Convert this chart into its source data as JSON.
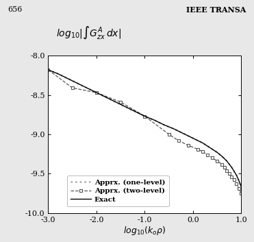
{
  "title": "$log_{10}|\\int G^A_{zx}\\, dx|$",
  "xlabel": "$log_{10}(k_o\\rho)$",
  "xlim": [
    -3.0,
    1.0
  ],
  "ylim": [
    -10.0,
    -8.0
  ],
  "xticks": [
    -3.0,
    -2.0,
    -1.0,
    0.0,
    1.0
  ],
  "yticks": [
    -10.0,
    -9.5,
    -9.0,
    -8.5,
    -8.0
  ],
  "xtick_labels": [
    "-3.0",
    "-2.0",
    "-1.0",
    "0.0",
    "1.0"
  ],
  "ytick_labels": [
    "-10.0",
    "-9.5",
    "-9.0",
    "-8.5",
    "-8.0"
  ],
  "x_data": [
    -3.0,
    -2.8,
    -2.6,
    -2.4,
    -2.2,
    -2.0,
    -1.8,
    -1.6,
    -1.4,
    -1.2,
    -1.0,
    -0.8,
    -0.6,
    -0.4,
    -0.2,
    0.0,
    0.1,
    0.2,
    0.3,
    0.4,
    0.5,
    0.6,
    0.65,
    0.7,
    0.75,
    0.8,
    0.85,
    0.9,
    0.95,
    1.0
  ],
  "y_exact": [
    -8.18,
    -8.23,
    -8.29,
    -8.35,
    -8.41,
    -8.47,
    -8.53,
    -8.59,
    -8.65,
    -8.71,
    -8.77,
    -8.82,
    -8.88,
    -8.93,
    -8.99,
    -9.05,
    -9.08,
    -9.11,
    -9.15,
    -9.19,
    -9.23,
    -9.28,
    -9.31,
    -9.34,
    -9.38,
    -9.42,
    -9.47,
    -9.52,
    -9.59,
    -9.67
  ],
  "x_two_level": [
    -3.0,
    -2.5,
    -2.0,
    -1.5,
    -1.0,
    -0.5,
    -0.3,
    -0.1,
    0.1,
    0.2,
    0.3,
    0.4,
    0.5,
    0.6,
    0.65,
    0.7,
    0.75,
    0.8,
    0.85,
    0.9,
    0.95,
    1.0
  ],
  "y_two_level": [
    -8.18,
    -8.41,
    -8.47,
    -8.59,
    -8.77,
    -9.0,
    -9.08,
    -9.14,
    -9.19,
    -9.22,
    -9.26,
    -9.3,
    -9.34,
    -9.38,
    -9.42,
    -9.46,
    -9.5,
    -9.54,
    -9.58,
    -9.63,
    -9.69,
    -9.75
  ],
  "y_one_level": [
    -8.18,
    -8.23,
    -8.29,
    -8.35,
    -8.41,
    -8.47,
    -8.53,
    -8.59,
    -8.65,
    -8.71,
    -8.77,
    -8.82,
    -8.88,
    -8.93,
    -8.99,
    -9.05,
    -9.08,
    -9.11,
    -9.15,
    -9.19,
    -9.23,
    -9.28,
    -9.31,
    -9.34,
    -9.38,
    -9.42,
    -9.47,
    -9.52,
    -9.59,
    -9.67
  ],
  "page_number": "656",
  "header_right": "IEEE TRANSA",
  "legend_labels": [
    "Exact",
    "Apprx. (two-level)",
    "Apprx. (one-level)"
  ],
  "fig_bg": "#e8e8e8"
}
